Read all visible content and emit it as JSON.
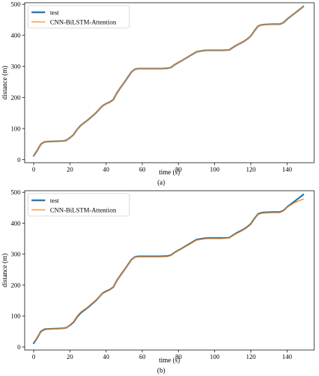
{
  "chart_data": [
    {
      "type": "line",
      "caption": "(a)",
      "xlabel": "time (s)",
      "ylabel": "distance (m)",
      "xlim": [
        -5,
        155
      ],
      "ylim": [
        -10,
        505
      ],
      "xticks": [
        0,
        20,
        40,
        60,
        80,
        100,
        120,
        140
      ],
      "yticks": [
        0,
        100,
        200,
        300,
        400,
        500
      ],
      "legend_position": "top-left",
      "series": [
        {
          "name": "test",
          "color": "#1f77b4",
          "x": [
            0,
            2,
            4,
            6,
            8,
            12,
            16,
            18,
            20,
            22,
            24,
            26,
            30,
            34,
            38,
            40,
            42,
            44,
            46,
            48,
            50,
            52,
            54,
            56,
            58,
            62,
            66,
            70,
            74,
            76,
            78,
            82,
            86,
            90,
            94,
            96,
            100,
            104,
            108,
            112,
            116,
            118,
            120,
            122,
            124,
            126,
            128,
            132,
            136,
            138,
            140,
            144,
            148,
            149
          ],
          "y": [
            12,
            30,
            50,
            57,
            58,
            59,
            60,
            62,
            70,
            80,
            97,
            110,
            128,
            148,
            173,
            180,
            185,
            193,
            215,
            232,
            248,
            265,
            282,
            291,
            293,
            293,
            293,
            293,
            294,
            297,
            306,
            319,
            333,
            347,
            351,
            352,
            352,
            352,
            353,
            368,
            380,
            388,
            398,
            415,
            430,
            434,
            435,
            436,
            436,
            441,
            452,
            470,
            488,
            493
          ]
        },
        {
          "name": "CNN-BiLSTM-Attention",
          "color": "#ff7f0e",
          "x": [
            0,
            2,
            4,
            6,
            8,
            12,
            16,
            18,
            20,
            22,
            24,
            26,
            30,
            34,
            38,
            40,
            42,
            44,
            46,
            48,
            50,
            52,
            54,
            56,
            58,
            62,
            66,
            70,
            74,
            76,
            78,
            82,
            86,
            90,
            94,
            96,
            100,
            104,
            108,
            112,
            116,
            118,
            120,
            122,
            124,
            126,
            128,
            132,
            136,
            138,
            140,
            144,
            148,
            149
          ],
          "y": [
            12,
            30,
            50,
            57,
            58,
            59,
            60,
            62,
            70,
            80,
            97,
            110,
            128,
            148,
            173,
            180,
            185,
            193,
            215,
            232,
            248,
            265,
            282,
            291,
            293,
            293,
            293,
            293,
            294,
            297,
            306,
            319,
            333,
            347,
            351,
            352,
            352,
            352,
            353,
            368,
            380,
            388,
            398,
            415,
            430,
            434,
            435,
            436,
            436,
            441,
            452,
            470,
            488,
            493
          ]
        }
      ]
    },
    {
      "type": "line",
      "caption": "(b)",
      "xlabel": "time (s)",
      "ylabel": "distance (m)",
      "xlim": [
        -5,
        155
      ],
      "ylim": [
        -10,
        505
      ],
      "xticks": [
        0,
        20,
        40,
        60,
        80,
        100,
        120,
        140
      ],
      "yticks": [
        0,
        100,
        200,
        300,
        400,
        500
      ],
      "legend_position": "top-left",
      "series": [
        {
          "name": "test",
          "color": "#1f77b4",
          "x": [
            0,
            2,
            4,
            6,
            8,
            12,
            16,
            18,
            20,
            22,
            24,
            26,
            30,
            34,
            38,
            40,
            42,
            44,
            46,
            48,
            50,
            52,
            54,
            56,
            58,
            62,
            66,
            70,
            74,
            76,
            78,
            82,
            86,
            90,
            94,
            96,
            100,
            104,
            108,
            112,
            116,
            118,
            120,
            122,
            124,
            126,
            128,
            132,
            136,
            138,
            140,
            144,
            148,
            149
          ],
          "y": [
            12,
            30,
            50,
            57,
            58,
            59,
            60,
            62,
            70,
            80,
            97,
            110,
            128,
            148,
            173,
            180,
            185,
            193,
            215,
            232,
            248,
            265,
            282,
            291,
            293,
            293,
            293,
            293,
            294,
            297,
            306,
            319,
            333,
            347,
            351,
            352,
            352,
            352,
            353,
            368,
            380,
            388,
            398,
            415,
            430,
            434,
            435,
            436,
            436,
            441,
            452,
            470,
            488,
            493
          ]
        },
        {
          "name": "CNN-BiLSTM-Attention",
          "color": "#ff7f0e",
          "x": [
            0,
            2,
            4,
            6,
            8,
            12,
            16,
            18,
            20,
            22,
            24,
            26,
            30,
            34,
            38,
            40,
            42,
            44,
            46,
            48,
            50,
            52,
            54,
            56,
            58,
            62,
            66,
            70,
            74,
            76,
            78,
            82,
            86,
            90,
            94,
            96,
            100,
            104,
            108,
            112,
            116,
            118,
            120,
            122,
            124,
            126,
            128,
            132,
            136,
            138,
            140,
            144,
            148,
            149
          ],
          "y": [
            15,
            32,
            48,
            55,
            57,
            58,
            59,
            62,
            71,
            82,
            100,
            113,
            130,
            150,
            172,
            178,
            184,
            192,
            214,
            231,
            247,
            264,
            281,
            290,
            291,
            291,
            291,
            291,
            292,
            296,
            305,
            318,
            331,
            345,
            349,
            350,
            350,
            350,
            352,
            366,
            378,
            386,
            396,
            413,
            428,
            432,
            433,
            434,
            434,
            440,
            451,
            466,
            476,
            478
          ]
        }
      ]
    }
  ]
}
